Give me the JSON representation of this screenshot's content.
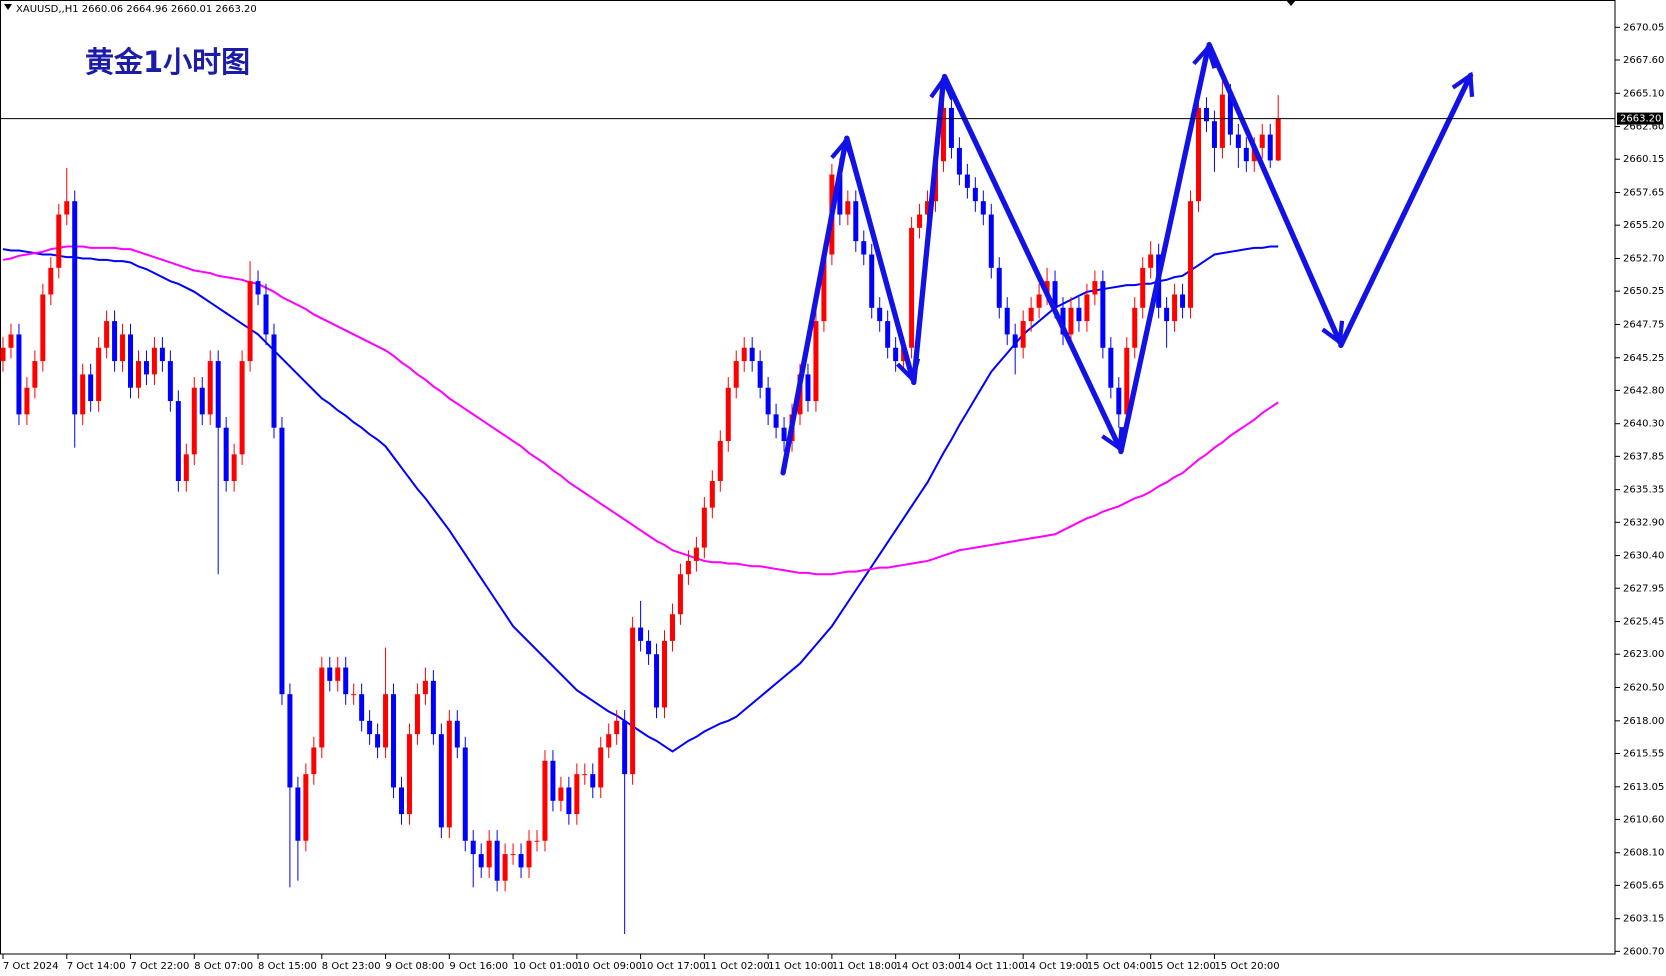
{
  "chart_data": {
    "type": "candlestick",
    "title": "黄金1小时图",
    "symbol_info": "XAUUSD,,H1  2660.06 2664.96 2660.01 2663.20",
    "up_color": "#ff0000",
    "down_color": "#0000ff",
    "categories": [
      "7 Oct 2024",
      null,
      null,
      null,
      null,
      null,
      null,
      null,
      "7 Oct 14:00",
      null,
      null,
      null,
      null,
      null,
      null,
      null,
      "7 Oct 22:00",
      null,
      null,
      null,
      null,
      null,
      null,
      null,
      "8 Oct 07:00",
      null,
      null,
      null,
      null,
      null,
      null,
      null,
      "8 Oct 15:00",
      null,
      null,
      null,
      null,
      null,
      null,
      null,
      "8 Oct 23:00",
      null,
      null,
      null,
      null,
      null,
      null,
      null,
      "9 Oct 08:00",
      null,
      null,
      null,
      null,
      null,
      null,
      null,
      "9 Oct 16:00",
      null,
      null,
      null,
      null,
      null,
      null,
      null,
      "10 Oct 01:00",
      null,
      null,
      null,
      null,
      null,
      null,
      null,
      "10 Oct 09:00",
      null,
      null,
      null,
      null,
      null,
      null,
      null,
      "10 Oct 17:00",
      null,
      null,
      null,
      null,
      null,
      null,
      null,
      "11 Oct 02:00",
      null,
      null,
      null,
      null,
      null,
      null,
      null,
      "11 Oct 10:00",
      null,
      null,
      null,
      null,
      null,
      null,
      null,
      "11 Oct 18:00",
      null,
      null,
      null,
      null,
      null,
      null,
      null,
      "14 Oct 03:00",
      null,
      null,
      null,
      null,
      null,
      null,
      null,
      "14 Oct 11:00",
      null,
      null,
      null,
      null,
      null,
      null,
      null,
      "14 Oct 19:00",
      null,
      null,
      null,
      null,
      null,
      null,
      null,
      "15 Oct 04:00",
      null,
      null,
      null,
      null,
      null,
      null,
      null,
      "15 Oct 12:00",
      null,
      null,
      null,
      null,
      null,
      null,
      null,
      "15 Oct 20:00",
      null,
      null,
      null,
      null,
      null,
      null,
      null,
      null
    ],
    "open": [
      2645,
      2646,
      2647,
      2641,
      2643,
      2645,
      2650,
      2652,
      2656,
      2657,
      2641,
      2644,
      2642,
      2646,
      2648,
      2645,
      2647,
      2643,
      2645,
      2644,
      2646,
      2645,
      2642,
      2636,
      2638,
      2643,
      2641,
      2645,
      2640,
      2636,
      2638,
      2645,
      2651,
      2650,
      2647,
      2640,
      2620,
      2613,
      2609,
      2614,
      2616,
      2622,
      2621,
      2622,
      2620,
      2620,
      2618,
      2617,
      2616,
      2620,
      2613,
      2611,
      2617,
      2620,
      2621,
      2617,
      2610,
      2618,
      2616,
      2609,
      2608,
      2607,
      2609,
      2606,
      2608,
      2608,
      2607,
      2609,
      2609,
      2615,
      2612,
      2613,
      2611,
      2614,
      2614,
      2613,
      2616,
      2617,
      2618,
      2614,
      2625,
      2624,
      2623,
      2619,
      2624,
      2626,
      2629,
      2630,
      2631,
      2634,
      2636,
      2639,
      2643,
      2645,
      2646,
      2645,
      2643,
      2641,
      2640,
      2639,
      2641,
      2644,
      2642,
      2648,
      2653,
      2659,
      2656,
      2657,
      2654,
      2653,
      2649,
      2648,
      2646,
      2645,
      2646,
      2655,
      2656,
      2657,
      2660,
      2664,
      2661,
      2659,
      2658,
      2657,
      2656,
      2652,
      2649,
      2647,
      2646,
      2648,
      2649,
      2650,
      2651,
      2649,
      2647,
      2649,
      2648,
      2650,
      2651,
      2646,
      2643,
      2641,
      2646,
      2649,
      2652,
      2653,
      2649,
      2648,
      2650,
      2649,
      2657,
      2664,
      2663,
      2661,
      2665,
      2662,
      2661,
      2660,
      2661,
      2662,
      2660.06
    ],
    "high": [
      2646.8,
      2647.8,
      2647.8,
      2643.8,
      2645.8,
      2650.8,
      2652.8,
      2656.8,
      2659.5,
      2657.8,
      2644.8,
      2644.8,
      2646.8,
      2648.8,
      2648.8,
      2647.8,
      2647.8,
      2645.8,
      2645.8,
      2646.8,
      2646.8,
      2645.8,
      2642.8,
      2638.8,
      2643.8,
      2643.8,
      2645.8,
      2645.8,
      2640.8,
      2638.8,
      2645.8,
      2652.5,
      2651.8,
      2650.8,
      2647.8,
      2640.8,
      2620.8,
      2613.8,
      2614.8,
      2616.8,
      2622.8,
      2622.8,
      2622.8,
      2622.8,
      2620.8,
      2620.8,
      2618.8,
      2617.8,
      2623.5,
      2620.8,
      2613.8,
      2617.8,
      2620.8,
      2622,
      2621.8,
      2617.8,
      2618.8,
      2618.8,
      2616.8,
      2609.8,
      2608.8,
      2609.8,
      2609.8,
      2608.8,
      2608.8,
      2608.8,
      2609.8,
      2609.8,
      2615.8,
      2615.8,
      2613.8,
      2613.8,
      2614.8,
      2614.8,
      2614.8,
      2616.8,
      2617.8,
      2618.8,
      2618.8,
      2625.8,
      2627,
      2624.8,
      2623.8,
      2624.8,
      2626.8,
      2629.8,
      2630.8,
      2631.8,
      2634.8,
      2636.8,
      2639.8,
      2643.8,
      2645.8,
      2646.8,
      2646.8,
      2645.8,
      2643.8,
      2641.8,
      2640.8,
      2641.8,
      2644.8,
      2644.8,
      2648.8,
      2653.8,
      2659.8,
      2660.2,
      2657.8,
      2657.8,
      2654.8,
      2653.8,
      2649.8,
      2648.8,
      2646.8,
      2646.8,
      2655.8,
      2656.8,
      2657.8,
      2660.8,
      2665.5,
      2664.8,
      2661.8,
      2659.8,
      2658.8,
      2657.8,
      2656.8,
      2652.8,
      2649.8,
      2647.8,
      2648.8,
      2649.8,
      2650.8,
      2652,
      2651.8,
      2649.8,
      2649.8,
      2649.8,
      2650.8,
      2651.8,
      2651.8,
      2646.8,
      2643.8,
      2646.8,
      2649.8,
      2652.8,
      2654,
      2653.8,
      2649.8,
      2650.8,
      2650.8,
      2657.8,
      2664.8,
      2664.8,
      2663.8,
      2666,
      2665.8,
      2662.8,
      2661.8,
      2661.8,
      2662.8,
      2662.8,
      2664.96
    ],
    "low": [
      2644.2,
      2645.2,
      2640.2,
      2640.2,
      2642.2,
      2644.2,
      2649.2,
      2651.2,
      2655.2,
      2638.5,
      2640.2,
      2641.2,
      2641.2,
      2645.2,
      2644.2,
      2644.2,
      2642.2,
      2642.2,
      2643.2,
      2643.2,
      2644.2,
      2641.2,
      2635.2,
      2635.2,
      2637.2,
      2640.2,
      2640.2,
      2629,
      2635.2,
      2635.2,
      2637.2,
      2644.2,
      2649.2,
      2646.2,
      2639.2,
      2619.2,
      2605.5,
      2606,
      2608.2,
      2613.2,
      2615.2,
      2620.2,
      2620.2,
      2619.2,
      2619.2,
      2617.2,
      2616.2,
      2615.2,
      2615.2,
      2612.2,
      2610.2,
      2610.2,
      2616.2,
      2619.2,
      2616.2,
      2609.2,
      2609.2,
      2615.2,
      2608.2,
      2605.5,
      2606.2,
      2606.2,
      2605.2,
      2605.2,
      2607.2,
      2606.2,
      2606.2,
      2608.2,
      2608.2,
      2611.2,
      2611.2,
      2610.2,
      2610.2,
      2613.2,
      2612.2,
      2612.2,
      2615.2,
      2616.2,
      2602,
      2613.2,
      2623.2,
      2622.2,
      2618.2,
      2618.2,
      2623.2,
      2625.2,
      2628.2,
      2629.2,
      2630.2,
      2633.2,
      2635.2,
      2638.2,
      2642.2,
      2644.2,
      2644.2,
      2642.2,
      2640.2,
      2639.2,
      2638.2,
      2638.2,
      2640.2,
      2641.2,
      2641.2,
      2647.2,
      2652.2,
      2655.2,
      2655.2,
      2653.2,
      2652.2,
      2648.2,
      2647.2,
      2645.2,
      2644.2,
      2644.2,
      2645.2,
      2654.2,
      2655.2,
      2656.2,
      2659.2,
      2660.2,
      2658.2,
      2657.2,
      2656.2,
      2655.2,
      2651.2,
      2648.2,
      2646.2,
      2644,
      2645.2,
      2647.2,
      2648.2,
      2649.2,
      2648.2,
      2646.2,
      2646.2,
      2647.2,
      2647.2,
      2649.2,
      2645.2,
      2642.2,
      2640,
      2640.2,
      2645.2,
      2648.2,
      2651.2,
      2648.2,
      2646,
      2647.2,
      2648.2,
      2648.2,
      2656.2,
      2662.2,
      2659.2,
      2660.2,
      2661.2,
      2659.5,
      2659.2,
      2659.2,
      2660.2,
      2659.5,
      2660.01
    ],
    "close": [
      2646,
      2647,
      2641,
      2643,
      2645,
      2650,
      2652,
      2656,
      2657,
      2641,
      2644,
      2642,
      2646,
      2648,
      2645,
      2647,
      2643,
      2645,
      2644,
      2646,
      2645,
      2642,
      2636,
      2638,
      2643,
      2641,
      2645,
      2640,
      2636,
      2638,
      2645,
      2651,
      2650,
      2647,
      2640,
      2620,
      2613,
      2609,
      2614,
      2616,
      2622,
      2621,
      2622,
      2620,
      2620,
      2618,
      2617,
      2616,
      2620,
      2613,
      2611,
      2617,
      2620,
      2621,
      2617,
      2610,
      2618,
      2616,
      2609,
      2608,
      2607,
      2609,
      2606,
      2608,
      2608,
      2607,
      2609,
      2609,
      2615,
      2612,
      2613,
      2611,
      2614,
      2614,
      2613,
      2616,
      2617,
      2618,
      2614,
      2625,
      2624,
      2623,
      2619,
      2624,
      2626,
      2629,
      2630,
      2631,
      2634,
      2636,
      2639,
      2643,
      2645,
      2646,
      2645,
      2643,
      2641,
      2640,
      2639,
      2641,
      2644,
      2642,
      2648,
      2653,
      2659,
      2656,
      2657,
      2654,
      2653,
      2649,
      2648,
      2646,
      2645,
      2646,
      2655,
      2656,
      2657,
      2660,
      2664,
      2661,
      2659,
      2658,
      2657,
      2656,
      2652,
      2649,
      2647,
      2646,
      2648,
      2649,
      2650,
      2651,
      2649,
      2647,
      2649,
      2648,
      2650,
      2651,
      2646,
      2643,
      2641,
      2646,
      2649,
      2652,
      2653,
      2649,
      2648,
      2650,
      2649,
      2657,
      2664,
      2663,
      2661,
      2665,
      2662,
      2661,
      2660,
      2661,
      2662,
      2660.06,
      2663.2
    ],
    "lines": [
      {
        "color": "#0000ff",
        "values": [
          2653.4,
          2653.3,
          2653.3,
          2653.2,
          2653.1,
          2653.0,
          2653.0,
          2652.9,
          2652.8,
          2652.8,
          2652.7,
          2652.7,
          2652.6,
          2652.6,
          2652.5,
          2652.5,
          2652.4,
          2652.1,
          2651.9,
          2651.6,
          2651.3,
          2651.0,
          2650.8,
          2650.5,
          2650.2,
          2649.8,
          2649.4,
          2649.0,
          2648.6,
          2648.2,
          2647.8,
          2647.4,
          2647.0,
          2646.4,
          2645.8,
          2645.2,
          2644.6,
          2644.0,
          2643.4,
          2642.8,
          2642.2,
          2641.8,
          2641.3,
          2640.9,
          2640.4,
          2640.0,
          2639.5,
          2639.1,
          2638.6,
          2637.8,
          2637.0,
          2636.2,
          2635.4,
          2634.7,
          2633.9,
          2633.1,
          2632.3,
          2631.4,
          2630.5,
          2629.6,
          2628.7,
          2627.8,
          2626.9,
          2626.0,
          2625.1,
          2624.5,
          2623.9,
          2623.3,
          2622.7,
          2622.1,
          2621.5,
          2620.9,
          2620.3,
          2619.9,
          2619.5,
          2619.1,
          2618.7,
          2618.4,
          2618.0,
          2617.6,
          2617.2,
          2616.8,
          2616.5,
          2616.1,
          2615.7,
          2616.1,
          2616.5,
          2616.8,
          2617.2,
          2617.5,
          2617.8,
          2618.0,
          2618.3,
          2618.8,
          2619.3,
          2619.8,
          2620.3,
          2620.8,
          2621.3,
          2621.8,
          2622.3,
          2623.0,
          2623.7,
          2624.4,
          2625.1,
          2626.0,
          2626.9,
          2627.8,
          2628.7,
          2629.6,
          2630.5,
          2631.4,
          2632.3,
          2633.2,
          2634.1,
          2635.0,
          2635.9,
          2637.0,
          2638.1,
          2639.1,
          2640.2,
          2641.2,
          2642.2,
          2643.2,
          2644.2,
          2644.9,
          2645.6,
          2646.3,
          2647.0,
          2647.5,
          2648.0,
          2648.5,
          2649.0,
          2649.3,
          2649.6,
          2649.9,
          2650.2,
          2650.3,
          2650.4,
          2650.5,
          2650.6,
          2650.7,
          2650.7,
          2650.8,
          2650.8,
          2651.0,
          2651.1,
          2651.3,
          2651.4,
          2651.8,
          2652.2,
          2652.6,
          2653.0,
          2653.1,
          2653.2,
          2653.3,
          2653.4,
          2653.5,
          2653.5,
          2653.6,
          2653.6
        ]
      },
      {
        "color": "#ff00ff",
        "values": [
          2652.6,
          2652.7,
          2652.9,
          2653.0,
          2653.1,
          2653.2,
          2653.4,
          2653.5,
          2653.6,
          2653.6,
          2653.6,
          2653.5,
          2653.5,
          2653.5,
          2653.5,
          2653.4,
          2653.4,
          2653.2,
          2653.0,
          2652.8,
          2652.6,
          2652.4,
          2652.2,
          2652.0,
          2651.8,
          2651.7,
          2651.6,
          2651.4,
          2651.3,
          2651.2,
          2651.1,
          2650.9,
          2650.8,
          2650.5,
          2650.2,
          2649.8,
          2649.5,
          2649.2,
          2648.9,
          2648.5,
          2648.2,
          2647.9,
          2647.6,
          2647.3,
          2647.0,
          2646.7,
          2646.4,
          2646.1,
          2645.8,
          2645.4,
          2644.9,
          2644.5,
          2644.0,
          2643.6,
          2643.1,
          2642.7,
          2642.2,
          2641.8,
          2641.4,
          2641.0,
          2640.6,
          2640.2,
          2639.8,
          2639.4,
          2639.0,
          2638.6,
          2638.1,
          2637.7,
          2637.3,
          2636.8,
          2636.4,
          2635.9,
          2635.5,
          2635.1,
          2634.7,
          2634.3,
          2633.9,
          2633.5,
          2633.1,
          2632.7,
          2632.3,
          2631.9,
          2631.5,
          2631.2,
          2630.8,
          2630.6,
          2630.4,
          2630.2,
          2630.0,
          2629.9,
          2629.9,
          2629.8,
          2629.8,
          2629.7,
          2629.6,
          2629.6,
          2629.5,
          2629.4,
          2629.3,
          2629.2,
          2629.1,
          2629.1,
          2629.0,
          2629.0,
          2629.0,
          2629.1,
          2629.2,
          2629.2,
          2629.3,
          2629.4,
          2629.5,
          2629.5,
          2629.6,
          2629.7,
          2629.8,
          2629.9,
          2630.0,
          2630.2,
          2630.4,
          2630.6,
          2630.8,
          2630.9,
          2631.0,
          2631.1,
          2631.2,
          2631.3,
          2631.4,
          2631.5,
          2631.6,
          2631.7,
          2631.8,
          2631.9,
          2632.0,
          2632.3,
          2632.6,
          2632.9,
          2633.2,
          2633.4,
          2633.7,
          2633.9,
          2634.1,
          2634.4,
          2634.7,
          2634.9,
          2635.2,
          2635.6,
          2635.9,
          2636.3,
          2636.6,
          2637.1,
          2637.6,
          2638.0,
          2638.5,
          2638.9,
          2639.4,
          2639.8,
          2640.2,
          2640.6,
          2641.1,
          2641.5,
          2641.9
        ]
      }
    ],
    "last_price": {
      "value": 2663.2,
      "label": "2663.20"
    },
    "ylim": [
      2600.5,
      2672.1
    ],
    "yticks": [
      2670.05,
      {
        "value": 2667.6,
        "label": "2667.60"
      },
      {
        "value": 2665.1,
        "label": "2665.10"
      },
      {
        "value": 2662.6,
        "label": "2662.60"
      },
      2660.15,
      2657.65,
      {
        "value": 2655.2,
        "label": "2655.20"
      },
      {
        "value": 2652.7,
        "label": "2652.70"
      },
      2650.25,
      2647.75,
      2645.25,
      {
        "value": 2642.8,
        "label": "2642.80"
      },
      {
        "value": 2640.3,
        "label": "2640.30"
      },
      2637.85,
      2635.35,
      {
        "value": 2632.9,
        "label": "2632.90"
      },
      {
        "value": 2630.4,
        "label": "2630.40"
      },
      2627.95,
      2625.45,
      {
        "value": 2623,
        "label": "2623.00"
      },
      {
        "value": 2620.5,
        "label": "2620.50"
      },
      {
        "value": 2618,
        "label": "2618.00"
      },
      2615.55,
      2613.05,
      {
        "value": 2610.6,
        "label": "2610.60"
      },
      {
        "value": 2608.1,
        "label": "2608.10"
      },
      2605.65,
      2603.15,
      {
        "value": 2600.7,
        "label": "2600.70"
      }
    ],
    "grid": false
  }
}
